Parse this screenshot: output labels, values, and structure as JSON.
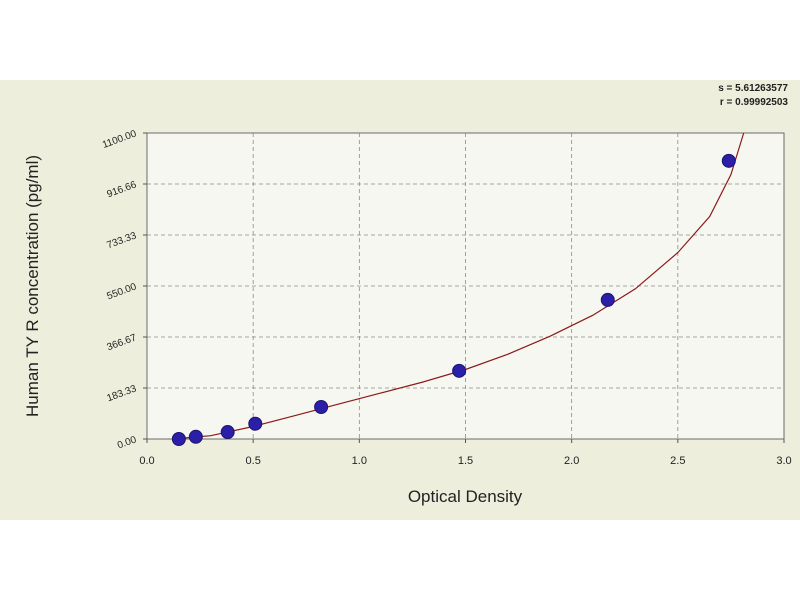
{
  "chart_data": {
    "type": "scatter",
    "xlabel": "Optical Density",
    "ylabel": "Human TY R concentration (pg/ml)",
    "xlim": [
      0.0,
      3.0
    ],
    "ylim": [
      0,
      1100
    ],
    "x_ticks": [
      0.0,
      0.5,
      1.0,
      1.5,
      2.0,
      2.5,
      3.0
    ],
    "x_tick_labels": [
      "0.0",
      "0.5",
      "1.0",
      "1.5",
      "2.0",
      "2.5",
      "3.0"
    ],
    "y_ticks": [
      0,
      183.33,
      366.67,
      550,
      733.33,
      916.66,
      1100
    ],
    "y_tick_labels": [
      "0.00",
      "183.33",
      "366.67",
      "550.00",
      "733.33",
      "916.66",
      "1100.00"
    ],
    "grid": true,
    "series": [
      {
        "marker": "circle",
        "color": "#2b1fa8",
        "x": [
          0.15,
          0.23,
          0.38,
          0.51,
          0.82,
          1.47,
          2.17,
          2.74
        ],
        "y": [
          0,
          8,
          25,
          55,
          115,
          245,
          500,
          1000
        ]
      }
    ],
    "fit_curve": {
      "color": "#8b1a1a",
      "x": [
        0.12,
        0.3,
        0.5,
        0.7,
        0.9,
        1.1,
        1.3,
        1.5,
        1.7,
        1.9,
        2.1,
        2.3,
        2.5,
        2.65,
        2.75,
        2.81
      ],
      "y": [
        0,
        12,
        45,
        85,
        125,
        165,
        205,
        250,
        305,
        370,
        445,
        540,
        670,
        800,
        950,
        1100
      ]
    },
    "annotations": {
      "s": "s = 5.61263577",
      "r": "r = 0.99992503"
    }
  }
}
